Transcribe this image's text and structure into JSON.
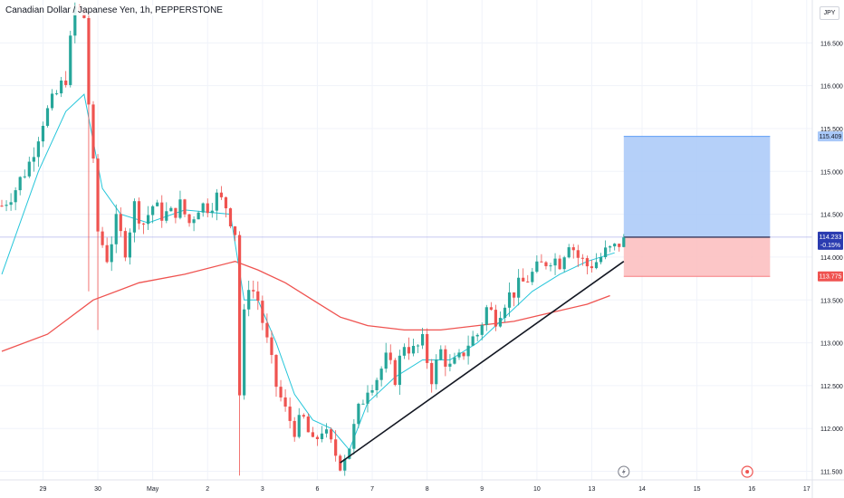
{
  "title": "Canadian Dollar / Japanese Yen, 1h, PEPPERSTONE",
  "currency_label": "JPY",
  "chart_data": {
    "type": "candlestick",
    "title": "Canadian Dollar / Japanese Yen, 1h, PEPPERSTONE",
    "ylim": [
      111.4,
      117.0
    ],
    "y_ticks": [
      "111.500",
      "112.000",
      "112.500",
      "113.000",
      "113.500",
      "114.000",
      "114.500",
      "115.000",
      "115.500",
      "116.000",
      "116.500"
    ],
    "x_ticks": [
      "29",
      "30",
      "May",
      "2",
      "3",
      "6",
      "7",
      "8",
      "9",
      "10",
      "13",
      "14",
      "15",
      "16",
      "17"
    ],
    "grid": true,
    "price_path": [
      [
        0,
        114.6
      ],
      [
        3,
        114.8
      ],
      [
        6,
        115.1
      ],
      [
        9,
        115.6
      ],
      [
        12,
        115.9
      ],
      [
        14,
        116.1
      ],
      [
        16,
        116.9
      ],
      [
        18,
        116.8
      ],
      [
        19,
        115.8
      ],
      [
        21,
        114.3
      ],
      [
        23,
        114.0
      ],
      [
        25,
        114.4
      ],
      [
        27,
        114.1
      ],
      [
        29,
        114.6
      ],
      [
        31,
        114.4
      ],
      [
        33,
        114.6
      ],
      [
        35,
        114.5
      ],
      [
        37,
        114.5
      ],
      [
        39,
        114.6
      ],
      [
        41,
        114.4
      ],
      [
        43,
        114.6
      ],
      [
        45,
        114.6
      ],
      [
        47,
        114.7
      ],
      [
        49,
        114.6
      ],
      [
        51,
        114.3
      ],
      [
        52,
        112.4
      ],
      [
        53,
        113.3
      ],
      [
        54,
        113.7
      ],
      [
        56,
        113.5
      ],
      [
        58,
        113.0
      ],
      [
        60,
        112.5
      ],
      [
        62,
        112.2
      ],
      [
        64,
        112.0
      ],
      [
        66,
        112.1
      ],
      [
        68,
        111.8
      ],
      [
        70,
        112.0
      ],
      [
        72,
        111.8
      ],
      [
        74,
        111.6
      ],
      [
        76,
        111.8
      ],
      [
        78,
        112.2
      ],
      [
        80,
        112.5
      ],
      [
        82,
        112.6
      ],
      [
        84,
        112.8
      ],
      [
        86,
        112.6
      ],
      [
        88,
        113.0
      ],
      [
        90,
        112.9
      ],
      [
        92,
        113.0
      ],
      [
        94,
        112.6
      ],
      [
        96,
        112.9
      ],
      [
        98,
        112.7
      ],
      [
        100,
        112.8
      ],
      [
        102,
        113.0
      ],
      [
        104,
        113.1
      ],
      [
        106,
        113.4
      ],
      [
        108,
        113.3
      ],
      [
        110,
        113.5
      ],
      [
        112,
        113.6
      ],
      [
        114,
        113.7
      ],
      [
        116,
        113.8
      ],
      [
        118,
        113.9
      ],
      [
        120,
        114.0
      ],
      [
        122,
        113.95
      ],
      [
        124,
        114.2
      ],
      [
        126,
        114.0
      ],
      [
        128,
        113.9
      ],
      [
        130,
        113.95
      ],
      [
        132,
        114.05
      ],
      [
        134,
        114.1
      ],
      [
        136,
        114.23
      ]
    ],
    "series": [
      {
        "name": "",
        "color": "#ef5350",
        "kind": "moving-average-slow",
        "values": [
          [
            0,
            112.9
          ],
          [
            10,
            113.1
          ],
          [
            20,
            113.5
          ],
          [
            30,
            113.7
          ],
          [
            40,
            113.8
          ],
          [
            51,
            113.95
          ],
          [
            56,
            113.85
          ],
          [
            62,
            113.7
          ],
          [
            68,
            113.5
          ],
          [
            74,
            113.3
          ],
          [
            80,
            113.2
          ],
          [
            88,
            113.15
          ],
          [
            96,
            113.15
          ],
          [
            104,
            113.2
          ],
          [
            112,
            113.25
          ],
          [
            120,
            113.35
          ],
          [
            128,
            113.45
          ],
          [
            133,
            113.55
          ]
        ]
      },
      {
        "name": "",
        "color": "#26c6da",
        "kind": "moving-average-fast",
        "values": [
          [
            0,
            113.8
          ],
          [
            8,
            115.0
          ],
          [
            14,
            115.7
          ],
          [
            18,
            115.9
          ],
          [
            22,
            114.8
          ],
          [
            26,
            114.5
          ],
          [
            32,
            114.4
          ],
          [
            40,
            114.55
          ],
          [
            50,
            114.5
          ],
          [
            53,
            113.5
          ],
          [
            56,
            113.5
          ],
          [
            60,
            113.0
          ],
          [
            64,
            112.4
          ],
          [
            68,
            112.1
          ],
          [
            72,
            112.0
          ],
          [
            76,
            111.75
          ],
          [
            80,
            112.3
          ],
          [
            86,
            112.6
          ],
          [
            92,
            112.8
          ],
          [
            98,
            112.8
          ],
          [
            104,
            113.0
          ],
          [
            110,
            113.3
          ],
          [
            116,
            113.6
          ],
          [
            122,
            113.8
          ],
          [
            128,
            113.95
          ],
          [
            134,
            114.05
          ]
        ]
      }
    ],
    "trendline": [
      [
        74,
        111.6
      ],
      [
        136,
        113.95
      ]
    ],
    "position": {
      "entry": 114.233,
      "target": 115.409,
      "stop": 113.775,
      "start_bar": 136,
      "end_bar": 167,
      "entry_label": "114.233",
      "change_label": "-0.15%",
      "target_label": "115.409",
      "stop_label": "113.775"
    },
    "colors": {
      "up": "#26a69a",
      "down": "#ef5350",
      "profit_zone": "#a8c8f8",
      "loss_zone": "#fbbcbd",
      "trendline": "#131722"
    },
    "annotations": {
      "lightning_icon_bar": 136,
      "event_icon_bar": 163
    }
  }
}
